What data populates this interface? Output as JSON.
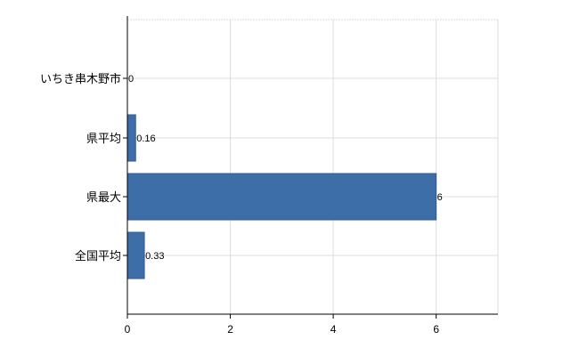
{
  "chart_data": {
    "type": "bar",
    "orientation": "horizontal",
    "categories": [
      "いちき串木野市",
      "県平均",
      "県最大",
      "全国平均"
    ],
    "values": [
      0,
      0.16,
      6,
      0.33
    ],
    "data_labels": [
      "0",
      "0.16",
      "6",
      "0.33"
    ],
    "xlim": [
      0,
      7.2
    ],
    "xticks": [
      0,
      2,
      4,
      6
    ],
    "xtick_labels": [
      "0",
      "2",
      "4",
      "6"
    ],
    "grid": true,
    "bar_color": "#3d6ea8",
    "bar_edge_color": "#2e5a8e",
    "grid_color": "#dcdcdc"
  }
}
